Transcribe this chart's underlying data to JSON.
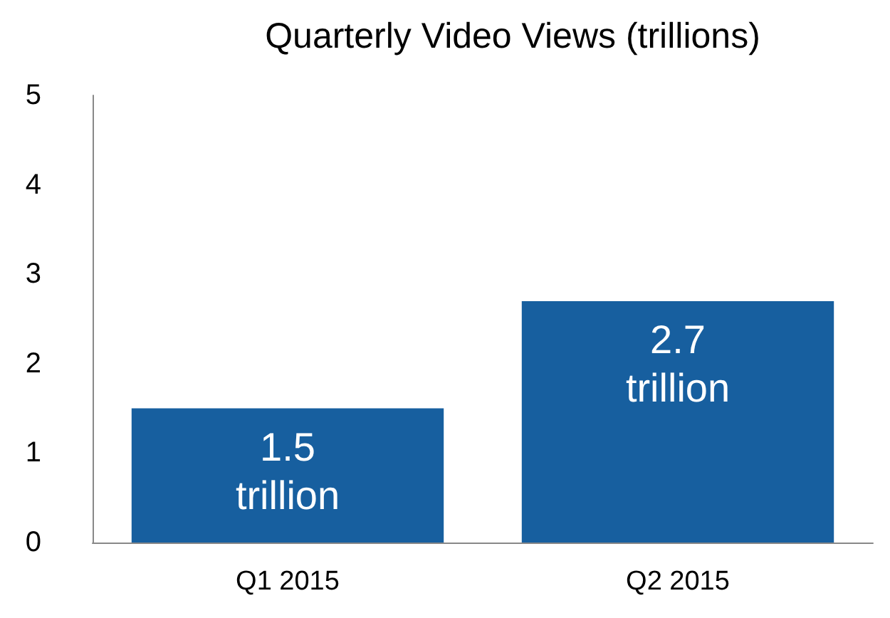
{
  "chart_data": {
    "type": "bar",
    "title": "Quarterly Video Views (trillions)",
    "categories": [
      "Q1 2015",
      "Q2 2015"
    ],
    "values": [
      1.5,
      2.7
    ],
    "value_labels": [
      "1.5 trillion",
      "2.7 trillion"
    ],
    "color": "#175f9f",
    "ylim": [
      0,
      5
    ],
    "yticks": [
      0,
      1,
      2,
      3,
      4,
      5
    ],
    "grid": false
  }
}
